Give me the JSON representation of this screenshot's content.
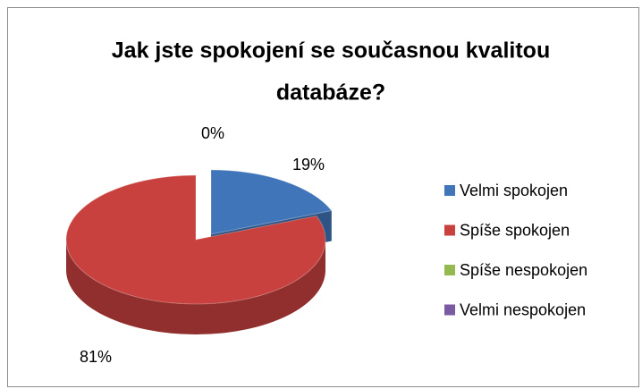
{
  "chart_data": {
    "type": "pie",
    "title": "Jak jste spokojení se současnou kvalitou databáze?",
    "title_lines": [
      "Jak jste spokojení se současnou kvalitou",
      "databáze?"
    ],
    "categories": [
      "Velmi spokojen",
      "Spíše spokojen",
      "Spíše nespokojen",
      "Velmi nespokojen"
    ],
    "values": [
      19,
      81,
      0,
      0
    ],
    "value_labels": [
      "19%",
      "81%",
      "0%",
      null
    ],
    "colors": [
      "#4075b9",
      "#c8413e",
      "#93b950",
      "#7a5aa0"
    ],
    "legend": "right"
  }
}
